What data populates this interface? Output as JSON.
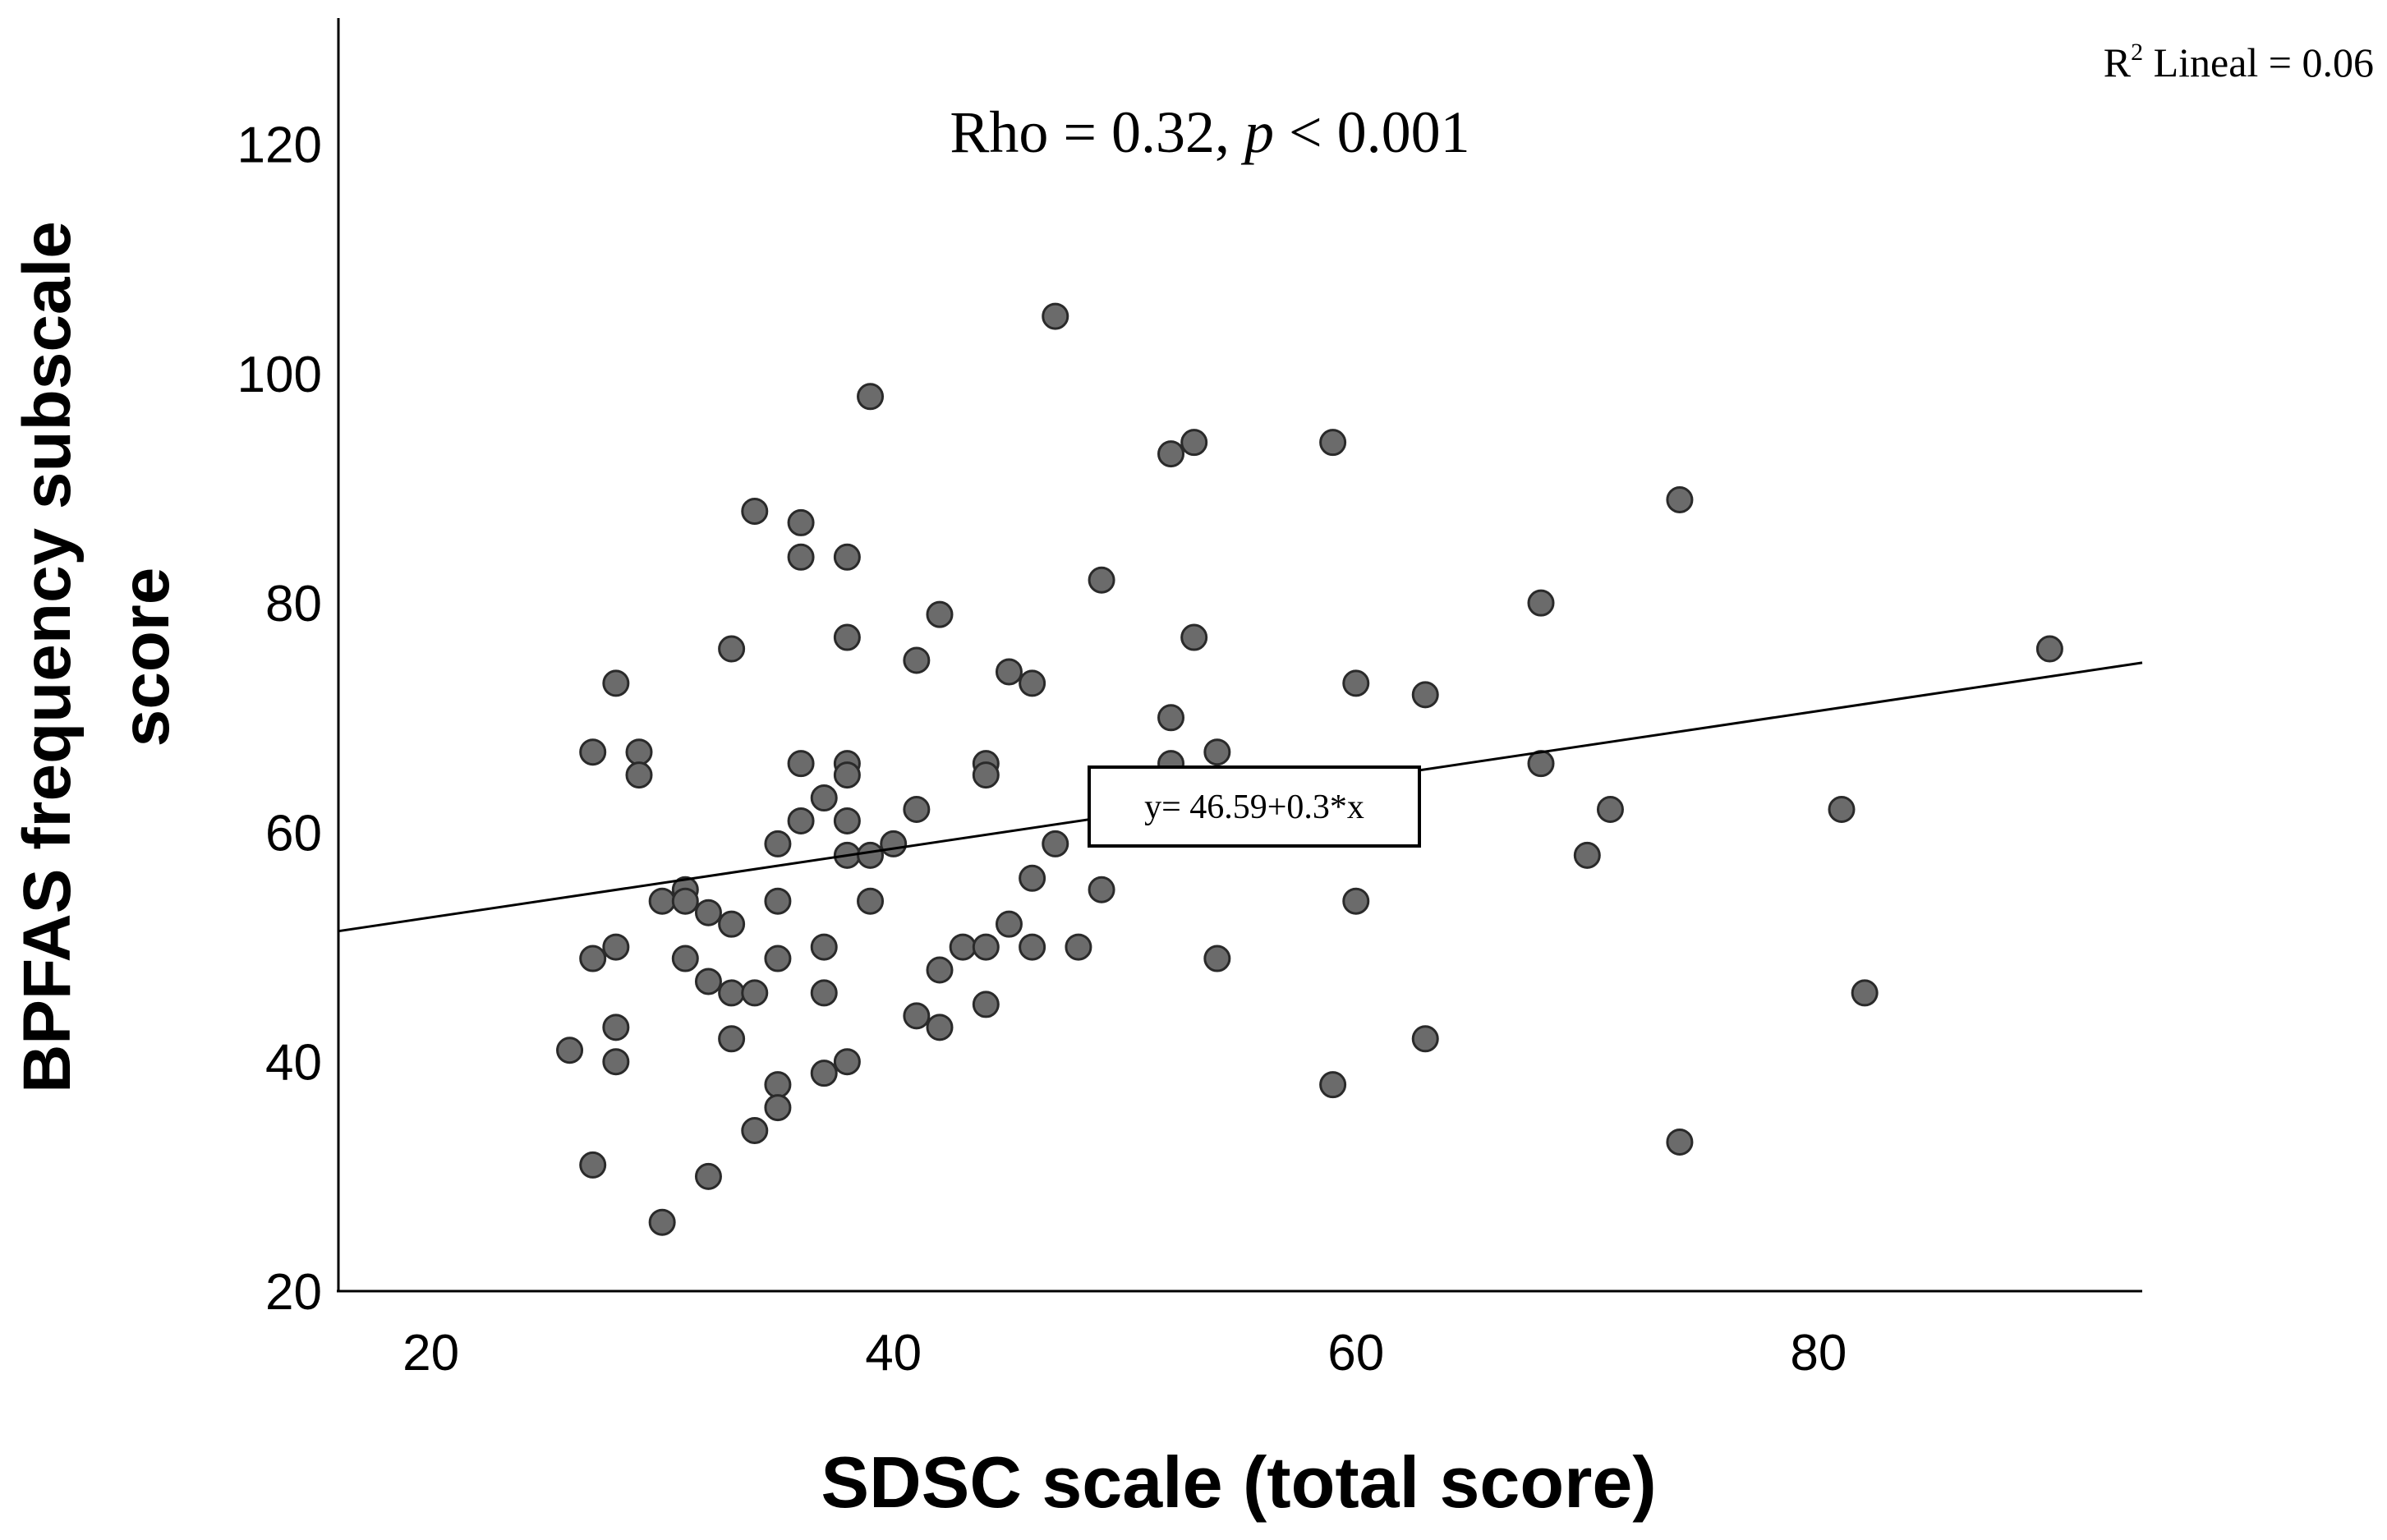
{
  "chart_data": {
    "type": "scatter",
    "title": "",
    "xlabel": "SDSC scale (total score)",
    "ylabel_line1": "BPFAS frequency subscale",
    "ylabel_line2": "score",
    "xlim": [
      16,
      94
    ],
    "ylim": [
      20,
      131
    ],
    "xticks": [
      20,
      40,
      60,
      80
    ],
    "yticks": [
      20,
      40,
      60,
      80,
      100,
      120
    ],
    "grid": false,
    "annotation_prefix": "Rho = 0.32, ",
    "annotation_p": "p",
    "annotation_suffix": " < 0.001",
    "r2_base": "R",
    "r2_exp": "2",
    "r2_rest": " Lineal = 0.06",
    "equation_label": "y= 46.59+0.3*x",
    "fit": {
      "intercept": 46.59,
      "slope": 0.3
    },
    "colors": {
      "point_fill": "#6b6b6b",
      "point_stroke": "#2a2a2a",
      "line": "#000000",
      "axis": "#000000"
    },
    "points": [
      [
        26,
        41
      ],
      [
        27,
        67
      ],
      [
        27,
        49
      ],
      [
        27,
        31
      ],
      [
        28,
        73
      ],
      [
        28,
        50
      ],
      [
        28,
        43
      ],
      [
        28,
        40
      ],
      [
        29,
        67
      ],
      [
        29,
        65
      ],
      [
        30,
        54
      ],
      [
        30,
        26
      ],
      [
        31,
        55
      ],
      [
        31,
        54
      ],
      [
        31,
        49
      ],
      [
        32,
        53
      ],
      [
        32,
        47
      ],
      [
        32,
        30
      ],
      [
        33,
        76
      ],
      [
        33,
        52
      ],
      [
        33,
        46
      ],
      [
        33,
        42
      ],
      [
        34,
        88
      ],
      [
        34,
        46
      ],
      [
        34,
        34
      ],
      [
        35,
        59
      ],
      [
        35,
        54
      ],
      [
        35,
        49
      ],
      [
        35,
        38
      ],
      [
        35,
        36
      ],
      [
        36,
        87
      ],
      [
        36,
        84
      ],
      [
        36,
        66
      ],
      [
        36,
        61
      ],
      [
        37,
        63
      ],
      [
        37,
        50
      ],
      [
        37,
        46
      ],
      [
        37,
        39
      ],
      [
        38,
        84
      ],
      [
        38,
        77
      ],
      [
        38,
        66
      ],
      [
        38,
        65
      ],
      [
        38,
        61
      ],
      [
        38,
        58
      ],
      [
        38,
        40
      ],
      [
        39,
        98
      ],
      [
        39,
        58
      ],
      [
        39,
        54
      ],
      [
        40,
        59
      ],
      [
        41,
        75
      ],
      [
        41,
        62
      ],
      [
        41,
        44
      ],
      [
        42,
        79
      ],
      [
        42,
        48
      ],
      [
        42,
        43
      ],
      [
        43,
        50
      ],
      [
        44,
        66
      ],
      [
        44,
        65
      ],
      [
        44,
        50
      ],
      [
        44,
        45
      ],
      [
        45,
        74
      ],
      [
        45,
        52
      ],
      [
        46,
        73
      ],
      [
        46,
        56
      ],
      [
        46,
        50
      ],
      [
        47,
        105
      ],
      [
        47,
        59
      ],
      [
        48,
        50
      ],
      [
        49,
        82
      ],
      [
        49,
        55
      ],
      [
        52,
        93
      ],
      [
        52,
        70
      ],
      [
        52,
        66
      ],
      [
        53,
        94
      ],
      [
        53,
        77
      ],
      [
        54,
        67
      ],
      [
        54,
        49
      ],
      [
        59,
        94
      ],
      [
        59,
        38
      ],
      [
        60,
        73
      ],
      [
        60,
        54
      ],
      [
        63,
        72
      ],
      [
        63,
        42
      ],
      [
        68,
        80
      ],
      [
        68,
        66
      ],
      [
        70,
        58
      ],
      [
        71,
        62
      ],
      [
        74,
        89
      ],
      [
        74,
        33
      ],
      [
        81,
        62
      ],
      [
        82,
        46
      ],
      [
        90,
        76
      ]
    ]
  }
}
